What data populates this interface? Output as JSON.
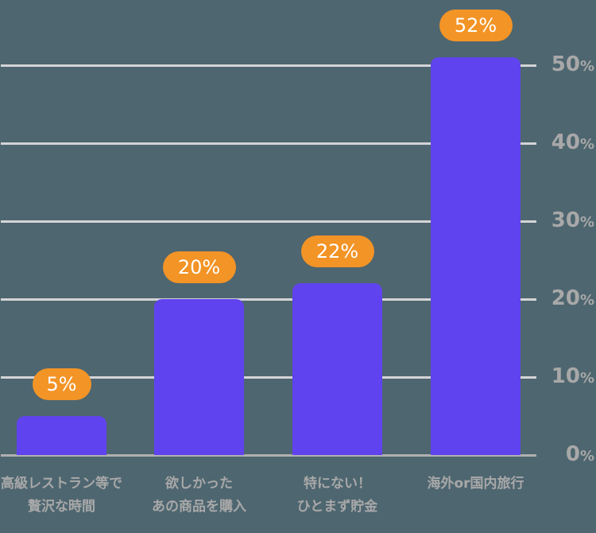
{
  "chart_data": {
    "type": "bar",
    "title": "",
    "xlabel": "",
    "ylabel": "",
    "categories": [
      "高級レストラン等で\n贅沢な時間",
      "欲しかった\nあの商品を購入",
      "特にない！\nひとまず貯金",
      "海外or国内旅行"
    ],
    "values": [
      5,
      20,
      22,
      52
    ],
    "value_labels": [
      "5%",
      "20%",
      "22%",
      "52%"
    ],
    "ylim": [
      0,
      50
    ],
    "yticks": [
      {
        "value": 0,
        "label": "0",
        "unit": "%"
      },
      {
        "value": 10,
        "label": "10",
        "unit": "%"
      },
      {
        "value": 20,
        "label": "20",
        "unit": "%"
      },
      {
        "value": 30,
        "label": "30",
        "unit": "%"
      },
      {
        "value": 40,
        "label": "40",
        "unit": "%"
      },
      {
        "value": 50,
        "label": "50",
        "unit": "%"
      }
    ],
    "grid": true,
    "yaxis_position": "right",
    "legend": null,
    "colors": {
      "bar": "#5f43ee",
      "label_badge": "#f39426",
      "background": "#4e6670",
      "grid": "#d4d4d6",
      "text": "#a8a8a8"
    }
  },
  "categories_display": [
    {
      "line1": "高級レストラン等で",
      "line2": "贅沢な時間"
    },
    {
      "line1": "欲しかった",
      "line2": "あの商品を購入"
    },
    {
      "line1": "特にない！",
      "line2": "ひとまず貯金"
    },
    {
      "line1": "海外or国内旅行",
      "line2": ""
    }
  ]
}
